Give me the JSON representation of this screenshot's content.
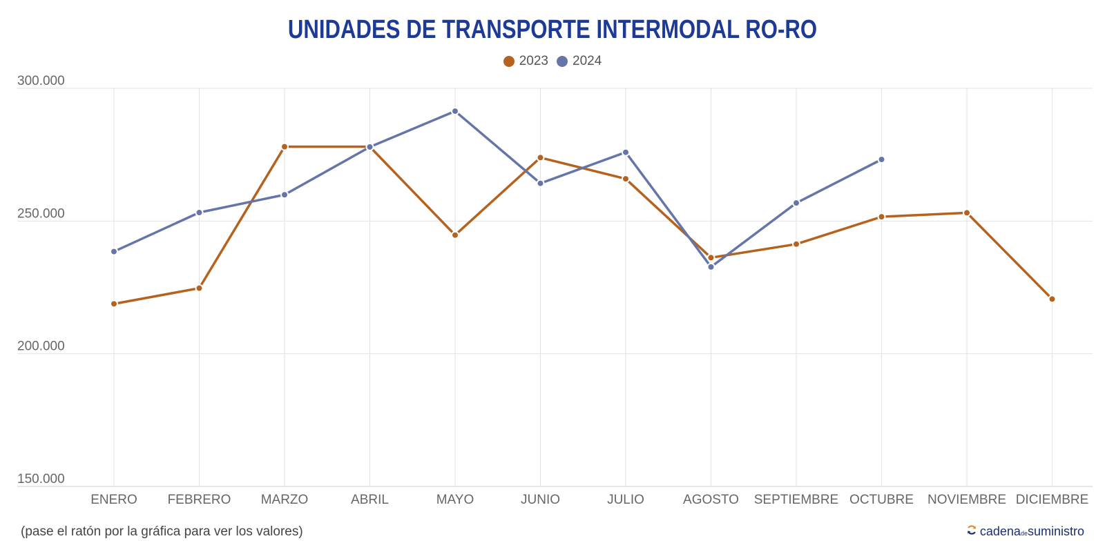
{
  "chart_data": {
    "type": "line",
    "title": "UNIDADES DE TRANSPORTE INTERMODAL RO-RO",
    "categories": [
      "ENERO",
      "FEBRERO",
      "MARZO",
      "ABRIL",
      "MAYO",
      "JUNIO",
      "JULIO",
      "AGOSTO",
      "SEPTIEMBRE",
      "OCTUBRE",
      "NOVIEMBRE",
      "DICIEMBRE"
    ],
    "series": [
      {
        "name": "2023",
        "color": "#b5621f",
        "values": [
          218800,
          224700,
          278000,
          278000,
          244700,
          273900,
          265900,
          236200,
          241300,
          251600,
          253100,
          220600
        ]
      },
      {
        "name": "2024",
        "color": "#6575a8",
        "values": [
          238500,
          253200,
          259900,
          277900,
          291400,
          264200,
          275900,
          232700,
          256800,
          273200,
          null,
          null
        ]
      }
    ],
    "yticks": [
      {
        "value": 150000,
        "label": "150.000"
      },
      {
        "value": 200000,
        "label": "200.000"
      },
      {
        "value": 250000,
        "label": "250.000"
      },
      {
        "value": 300000,
        "label": "300.000"
      }
    ],
    "ylim": [
      150000,
      300000
    ],
    "grid": true,
    "legend_position": "top-center",
    "title_color": "#1d3a96"
  },
  "footnote": "(pase el ratón por la gráfica para ver los valores)",
  "brand": {
    "name_before": "cadena",
    "name_small": "de",
    "name_after": "suministro",
    "icon": "refresh-arrows-icon"
  }
}
